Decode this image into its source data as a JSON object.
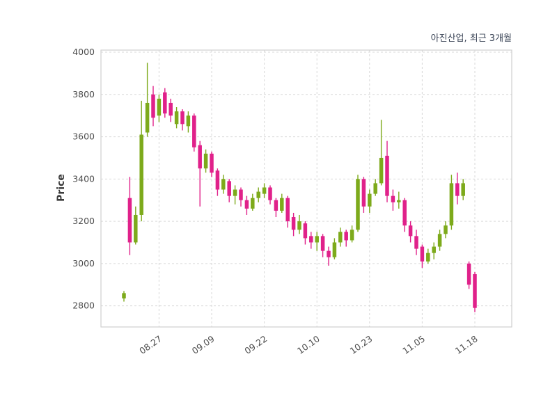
{
  "chart_data": {
    "type": "candlestick",
    "title": "아진산업, 최근 3개월",
    "ylabel": "Price",
    "ylim": [
      2700,
      4010
    ],
    "yticks": [
      2800,
      3000,
      3200,
      3400,
      3600,
      3800,
      4000
    ],
    "xtick_labels": [
      "08.27",
      "09.09",
      "09.22",
      "10.10",
      "10.23",
      "11.05",
      "11.18"
    ],
    "xtick_indices": [
      6,
      15,
      24,
      33,
      42,
      51,
      60
    ],
    "grid": true,
    "legend": "none",
    "colors": {
      "up": "#7daa1b",
      "down": "#e0218a",
      "grid": "#d9d9d9",
      "border": "#cfcfcf",
      "tick_text": "#4d4d4d",
      "title_text": "#3a4456",
      "background": "#ffffff"
    },
    "ohlc": [
      [
        2835,
        2870,
        2820,
        2860
      ],
      [
        3310,
        3410,
        3040,
        3100
      ],
      [
        3100,
        3270,
        3090,
        3230
      ],
      [
        3230,
        3770,
        3200,
        3610
      ],
      [
        3620,
        3950,
        3600,
        3760
      ],
      [
        3800,
        3840,
        3650,
        3690
      ],
      [
        3700,
        3800,
        3670,
        3780
      ],
      [
        3810,
        3830,
        3690,
        3710
      ],
      [
        3760,
        3780,
        3670,
        3700
      ],
      [
        3660,
        3740,
        3640,
        3720
      ],
      [
        3720,
        3730,
        3630,
        3660
      ],
      [
        3650,
        3720,
        3620,
        3700
      ],
      [
        3700,
        3710,
        3530,
        3550
      ],
      [
        3560,
        3580,
        3270,
        3450
      ],
      [
        3450,
        3540,
        3430,
        3520
      ],
      [
        3520,
        3530,
        3410,
        3430
      ],
      [
        3440,
        3450,
        3320,
        3350
      ],
      [
        3350,
        3420,
        3330,
        3400
      ],
      [
        3390,
        3400,
        3290,
        3320
      ],
      [
        3320,
        3370,
        3280,
        3350
      ],
      [
        3350,
        3360,
        3270,
        3300
      ],
      [
        3300,
        3320,
        3230,
        3260
      ],
      [
        3260,
        3330,
        3250,
        3310
      ],
      [
        3310,
        3360,
        3290,
        3340
      ],
      [
        3330,
        3380,
        3310,
        3360
      ],
      [
        3360,
        3370,
        3280,
        3300
      ],
      [
        3300,
        3310,
        3220,
        3250
      ],
      [
        3250,
        3330,
        3240,
        3310
      ],
      [
        3310,
        3320,
        3170,
        3200
      ],
      [
        3220,
        3240,
        3130,
        3160
      ],
      [
        3160,
        3230,
        3140,
        3200
      ],
      [
        3190,
        3200,
        3090,
        3120
      ],
      [
        3130,
        3150,
        3070,
        3100
      ],
      [
        3100,
        3150,
        3060,
        3130
      ],
      [
        3130,
        3140,
        3030,
        3060
      ],
      [
        3060,
        3080,
        2990,
        3030
      ],
      [
        3030,
        3120,
        3020,
        3100
      ],
      [
        3100,
        3170,
        3080,
        3150
      ],
      [
        3150,
        3160,
        3080,
        3110
      ],
      [
        3110,
        3180,
        3100,
        3160
      ],
      [
        3160,
        3420,
        3150,
        3400
      ],
      [
        3400,
        3410,
        3240,
        3270
      ],
      [
        3270,
        3350,
        3240,
        3330
      ],
      [
        3330,
        3400,
        3320,
        3380
      ],
      [
        3380,
        3680,
        3370,
        3500
      ],
      [
        3510,
        3580,
        3290,
        3320
      ],
      [
        3320,
        3350,
        3250,
        3290
      ],
      [
        3290,
        3340,
        3260,
        3300
      ],
      [
        3300,
        3310,
        3150,
        3180
      ],
      [
        3180,
        3200,
        3100,
        3130
      ],
      [
        3130,
        3160,
        3040,
        3070
      ],
      [
        3080,
        3090,
        2980,
        3010
      ],
      [
        3010,
        3070,
        3000,
        3050
      ],
      [
        3050,
        3100,
        3020,
        3080
      ],
      [
        3080,
        3160,
        3060,
        3140
      ],
      [
        3140,
        3200,
        3120,
        3180
      ],
      [
        3180,
        3420,
        3160,
        3380
      ],
      [
        3380,
        3430,
        3280,
        3320
      ],
      [
        3320,
        3400,
        3300,
        3380
      ],
      [
        3000,
        3010,
        2880,
        2900
      ],
      [
        2950,
        2960,
        2770,
        2790
      ]
    ]
  }
}
